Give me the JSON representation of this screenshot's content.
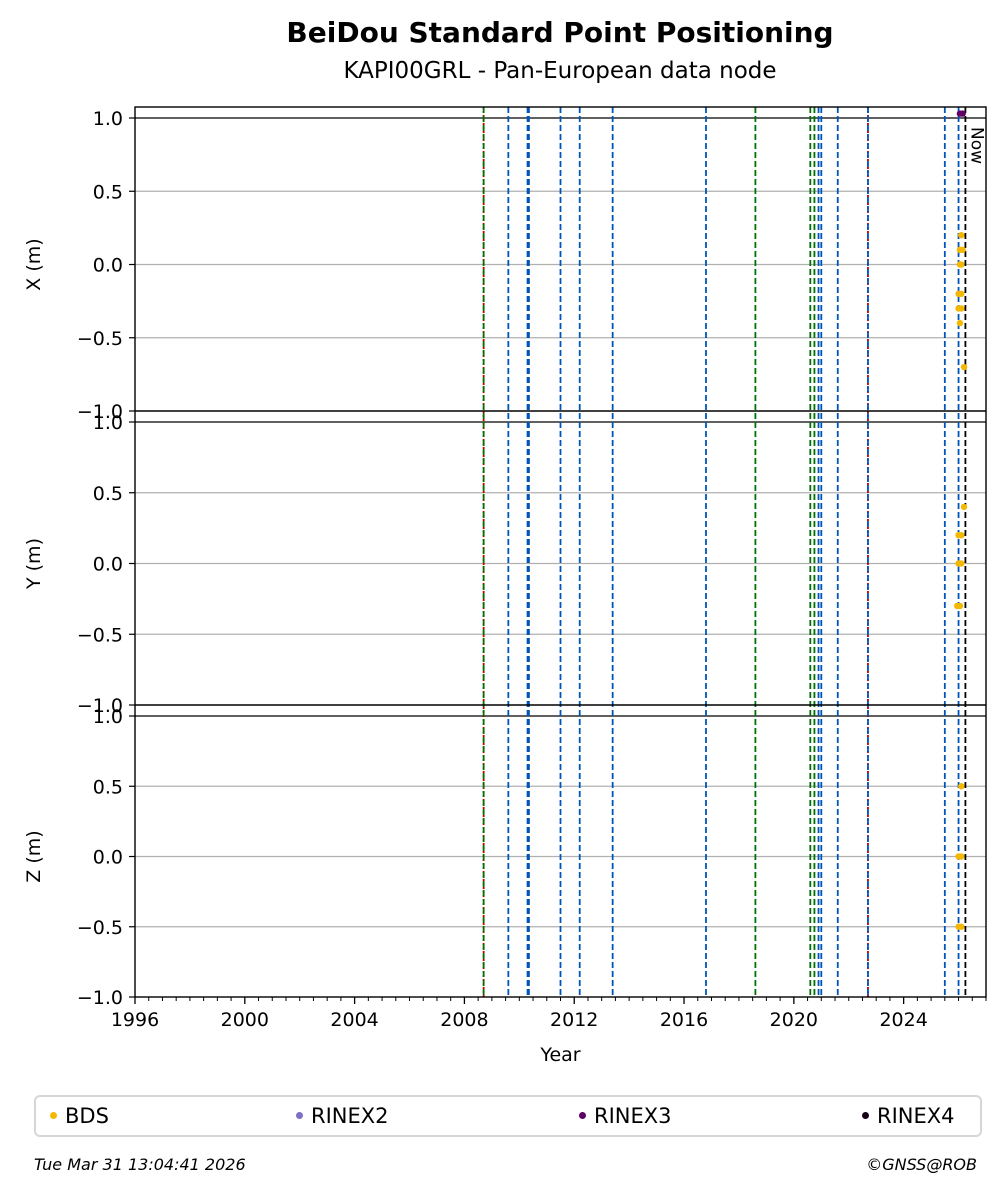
{
  "chart_data": {
    "title": "BeiDou Standard Point Positioning",
    "subtitle": "KAPI00GRL - Pan-European data node",
    "xlabel": "Year",
    "xlim": [
      1996.0,
      2027.0
    ],
    "x_ticks": [
      1996,
      2000,
      2004,
      2008,
      2012,
      2016,
      2020,
      2024
    ],
    "x_minor_step": 0.5,
    "now_label": "Now",
    "now_x": 2026.25,
    "grid": true,
    "panels": [
      {
        "type": "scatter",
        "ylabel": "X (m)",
        "ylim": [
          -1.0,
          1.0
        ],
        "y_ticks": [
          {
            "value": 1.0,
            "label": "1.0"
          },
          {
            "value": 0.5,
            "label": "0.5"
          },
          {
            "value": 0.0,
            "label": "0.0"
          },
          {
            "value": -0.5,
            "label": "−0.5"
          },
          {
            "value": -1.0,
            "label": "−1.0"
          }
        ],
        "series": [
          {
            "name": "BDS",
            "color": "#f5b800",
            "points": [
              [
                2026.1,
                0.2
              ],
              [
                2026.05,
                0.1
              ],
              [
                2026.15,
                0.1
              ],
              [
                2026.05,
                0.0
              ],
              [
                2026.1,
                0.0
              ],
              [
                2026.0,
                -0.2
              ],
              [
                2026.1,
                -0.2
              ],
              [
                2026.0,
                -0.3
              ],
              [
                2026.1,
                -0.3
              ],
              [
                2026.05,
                -0.4
              ],
              [
                2026.2,
                -0.7
              ]
            ]
          },
          {
            "name": "RINEX3",
            "color": "#5e0066",
            "points": [
              [
                2026.05,
                1.03
              ],
              [
                2026.15,
                1.03
              ]
            ]
          }
        ]
      },
      {
        "type": "scatter",
        "ylabel": "Y (m)",
        "ylim": [
          -1.0,
          1.0
        ],
        "y_ticks": [
          {
            "value": 1.0,
            "label": "1.0"
          },
          {
            "value": 0.5,
            "label": "0.5"
          },
          {
            "value": 0.0,
            "label": "0.0"
          },
          {
            "value": -0.5,
            "label": "−0.5"
          },
          {
            "value": -1.0,
            "label": "−1.0"
          }
        ],
        "series": [
          {
            "name": "BDS",
            "color": "#f5b800",
            "points": [
              [
                2026.2,
                0.4
              ],
              [
                2026.0,
                0.2
              ],
              [
                2026.1,
                0.2
              ],
              [
                2026.0,
                0.0
              ],
              [
                2026.1,
                0.0
              ],
              [
                2025.95,
                -0.3
              ],
              [
                2026.05,
                -0.3
              ]
            ]
          }
        ]
      },
      {
        "type": "scatter",
        "ylabel": "Z (m)",
        "ylim": [
          -1.0,
          1.0
        ],
        "y_ticks": [
          {
            "value": 1.0,
            "label": "1.0"
          },
          {
            "value": 0.5,
            "label": "0.5"
          },
          {
            "value": 0.0,
            "label": "0.0"
          },
          {
            "value": -0.5,
            "label": "−0.5"
          },
          {
            "value": -1.0,
            "label": "−1.0"
          }
        ],
        "series": [
          {
            "name": "BDS",
            "color": "#f5b800",
            "points": [
              [
                2026.1,
                0.5
              ],
              [
                2026.0,
                0.0
              ],
              [
                2026.1,
                0.0
              ],
              [
                2026.0,
                -0.5
              ],
              [
                2026.1,
                -0.5
              ]
            ]
          }
        ]
      }
    ],
    "events": [
      {
        "x": 2008.7,
        "color": "#c00000",
        "dash": "2,2"
      },
      {
        "x": 2008.7,
        "color": "#007000",
        "dash": "6,3"
      },
      {
        "x": 2009.6,
        "color": "#0055bb",
        "dash": "6,3"
      },
      {
        "x": 2010.3,
        "color": "#0055bb",
        "dash": "6,3"
      },
      {
        "x": 2010.35,
        "color": "#0055bb",
        "dash": "6,3"
      },
      {
        "x": 2011.5,
        "color": "#0055bb",
        "dash": "6,3"
      },
      {
        "x": 2012.2,
        "color": "#0055bb",
        "dash": "6,3"
      },
      {
        "x": 2013.4,
        "color": "#0055bb",
        "dash": "6,3"
      },
      {
        "x": 2016.8,
        "color": "#0055bb",
        "dash": "6,3"
      },
      {
        "x": 2018.6,
        "color": "#007000",
        "dash": "6,3"
      },
      {
        "x": 2020.6,
        "color": "#007000",
        "dash": "6,3"
      },
      {
        "x": 2020.75,
        "color": "#007000",
        "dash": "6,3"
      },
      {
        "x": 2020.9,
        "color": "#0055bb",
        "dash": "6,3"
      },
      {
        "x": 2021.0,
        "color": "#0055bb",
        "dash": "6,3"
      },
      {
        "x": 2021.6,
        "color": "#0055bb",
        "dash": "6,3"
      },
      {
        "x": 2022.7,
        "color": "#c00000",
        "dash": "2,2"
      },
      {
        "x": 2022.7,
        "color": "#0055bb",
        "dash": "6,3"
      },
      {
        "x": 2025.5,
        "color": "#0055bb",
        "dash": "6,3"
      },
      {
        "x": 2026.0,
        "color": "#0055bb",
        "dash": "6,3"
      },
      {
        "x": 2026.25,
        "color": "#000000",
        "dash": "6,3"
      }
    ],
    "legend": {
      "placement": "bottom",
      "entries": [
        {
          "label": "BDS",
          "color": "#f5b800"
        },
        {
          "label": "RINEX2",
          "color": "#7b6fc6"
        },
        {
          "label": "RINEX3",
          "color": "#5e0066"
        },
        {
          "label": "RINEX4",
          "color": "#150015"
        }
      ]
    }
  },
  "footer": {
    "timestamp": "Tue Mar 31 13:04:41 2026",
    "credit": "©GNSS@ROB"
  }
}
